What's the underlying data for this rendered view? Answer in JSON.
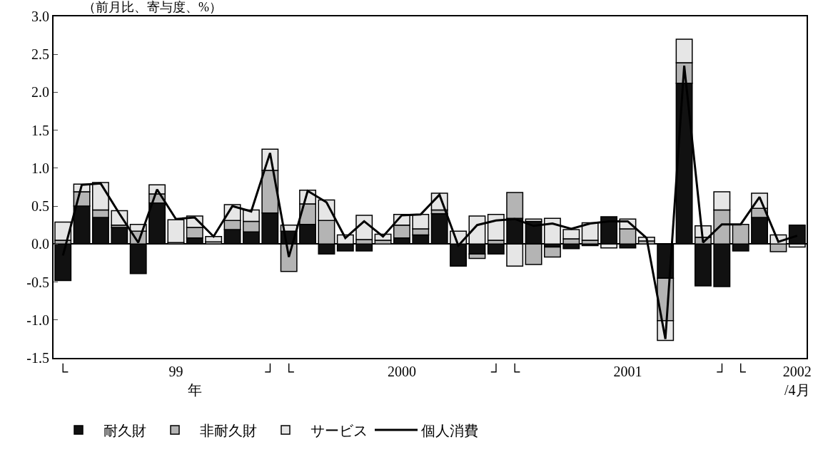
{
  "chart_data": {
    "type": "bar",
    "stacked": true,
    "title": "（前月比、寄与度、%）",
    "categories": [
      "└",
      null,
      null,
      null,
      null,
      null,
      "99",
      "\n年",
      null,
      null,
      null,
      "┘",
      "└",
      null,
      null,
      null,
      null,
      null,
      "2000",
      null,
      null,
      null,
      null,
      "┘",
      "└",
      null,
      null,
      null,
      null,
      null,
      "2001",
      null,
      null,
      null,
      null,
      "┘",
      "└",
      null,
      null,
      "2002\n/4月"
    ],
    "ylim": [
      -1.5,
      3.0
    ],
    "yticks": [
      {
        "value": -1.5,
        "label": "-1.5"
      },
      {
        "value": -1.0,
        "label": "-1.0"
      },
      {
        "value": -0.5,
        "label": "-0.5"
      },
      {
        "value": 0,
        "label": "0.0"
      },
      {
        "value": 0.5,
        "label": "0.5"
      },
      {
        "value": 1.0,
        "label": "1.0"
      },
      {
        "value": 1.5,
        "label": "1.5"
      },
      {
        "value": 2.0,
        "label": "2.0"
      },
      {
        "value": 2.5,
        "label": "2.5"
      },
      {
        "value": 3.0,
        "label": "3.0"
      }
    ],
    "legend": "bottom",
    "series": [
      {
        "name": "耐久財",
        "color": "#111111",
        "values": [
          -0.48,
          0.5,
          0.35,
          0.22,
          -0.39,
          0.54,
          null,
          0.08,
          null,
          0.19,
          0.16,
          0.41,
          0.17,
          0.26,
          -0.13,
          -0.09,
          -0.09,
          null,
          0.08,
          0.12,
          0.4,
          -0.29,
          -0.13,
          -0.13,
          0.34,
          0.3,
          -0.04,
          -0.06,
          -0.02,
          0.36,
          -0.05,
          null,
          -0.45,
          2.12,
          -0.55,
          -0.56,
          -0.09,
          0.35,
          null,
          0.25
        ]
      },
      {
        "name": "非耐久財",
        "color": "#b4b4b4",
        "values": [
          0.05,
          0.19,
          0.1,
          0.03,
          0.17,
          0.12,
          0.02,
          0.14,
          0.03,
          0.12,
          0.14,
          0.56,
          -0.36,
          0.27,
          0.31,
          null,
          0.06,
          0.05,
          0.17,
          0.08,
          0.05,
          null,
          -0.06,
          0.05,
          0.34,
          -0.27,
          -0.13,
          0.07,
          0.05,
          null,
          0.2,
          0.04,
          -0.56,
          0.27,
          0.09,
          0.45,
          0.26,
          0.12,
          -0.1,
          null
        ]
      },
      {
        "name": "サービス",
        "color": "#e6e6e6",
        "values": [
          0.24,
          0.1,
          0.36,
          0.19,
          0.09,
          0.12,
          0.3,
          0.15,
          0.07,
          0.21,
          0.15,
          0.28,
          0.08,
          0.18,
          0.27,
          0.12,
          0.32,
          0.08,
          0.14,
          0.19,
          0.22,
          0.17,
          0.37,
          0.34,
          -0.29,
          0.03,
          0.34,
          0.12,
          0.23,
          -0.05,
          0.13,
          0.05,
          -0.26,
          0.31,
          0.15,
          0.24,
          null,
          0.2,
          0.12,
          -0.04
        ]
      },
      {
        "name": "個人消費",
        "type": "line",
        "color": "#000000",
        "values": [
          -0.15,
          0.78,
          0.8,
          0.4,
          0.02,
          0.72,
          0.33,
          0.35,
          0.1,
          0.5,
          0.43,
          1.2,
          -0.17,
          0.7,
          0.55,
          0.08,
          0.3,
          0.1,
          0.38,
          0.39,
          0.65,
          -0.02,
          0.25,
          0.31,
          0.33,
          0.24,
          0.27,
          0.2,
          0.27,
          0.3,
          0.3,
          0.08,
          -1.25,
          2.35,
          0.02,
          0.26,
          0.26,
          0.62,
          0.03,
          0.11
        ]
      }
    ]
  }
}
